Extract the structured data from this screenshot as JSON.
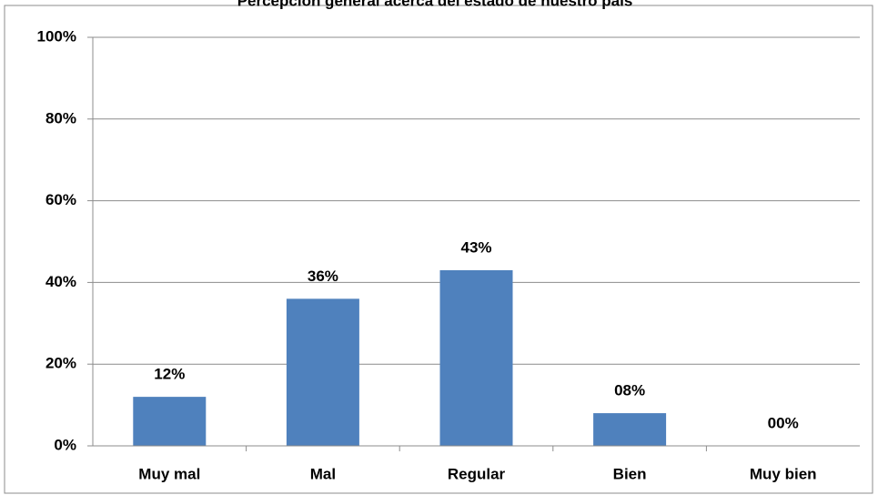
{
  "chart_data": {
    "type": "bar",
    "title": "Percepción general acerca del estado de nuestro país",
    "categories": [
      "Muy mal",
      "Mal",
      "Regular",
      "Bien",
      "Muy bien"
    ],
    "values": [
      12,
      36,
      43,
      8,
      0
    ],
    "value_labels": [
      "12%",
      "36%",
      "43%",
      "08%",
      "00%"
    ],
    "color": "#4f81bd",
    "ylim": [
      0,
      100
    ],
    "yticks": [
      {
        "value": 0,
        "label": "0%"
      },
      {
        "value": 20,
        "label": "20%"
      },
      {
        "value": 40,
        "label": "40%"
      },
      {
        "value": 60,
        "label": "60%"
      },
      {
        "value": 80,
        "label": "80%"
      },
      {
        "value": 100,
        "label": "100%"
      }
    ],
    "grid": true
  }
}
